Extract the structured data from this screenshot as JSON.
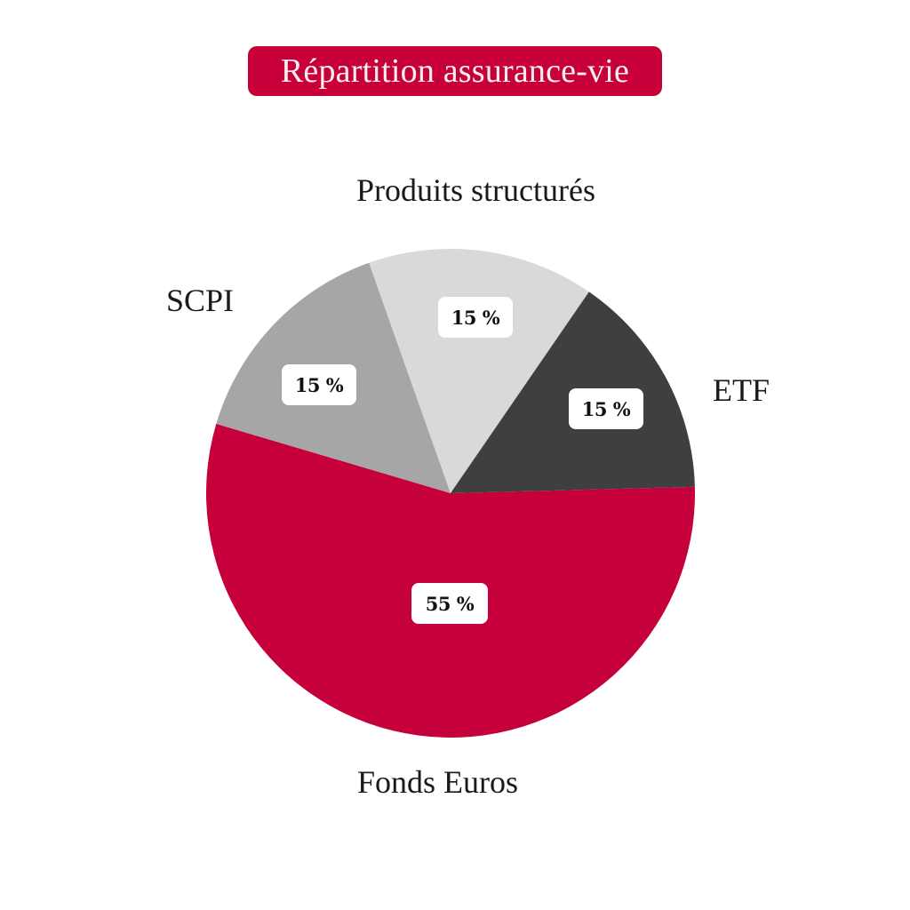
{
  "title": "Répartition assurance-vie",
  "colors": {
    "title_bg": "#c8003a",
    "title_text": "#fbeef1",
    "fonds_euros": "#c5003a",
    "scpi": "#a6a6a6",
    "produits_structures": "#d9d9d9",
    "etf": "#3f3f3f",
    "label_box": "#ffffff"
  },
  "labels": {
    "fonds_euros": "Fonds Euros",
    "scpi": "SCPI",
    "produits_structures": "Produits structurés",
    "etf": "ETF"
  },
  "percent_labels": {
    "fonds_euros": "55 %",
    "scpi": "15 %",
    "produits_structures": "15 %",
    "etf": "15 %"
  },
  "chart_data": {
    "type": "pie",
    "title": "Répartition assurance-vie",
    "categories": [
      "Fonds Euros",
      "SCPI",
      "Produits structurés",
      "ETF"
    ],
    "values": [
      55,
      15,
      15,
      15
    ],
    "unit": "%",
    "colors": [
      "#c5003a",
      "#a6a6a6",
      "#d9d9d9",
      "#3f3f3f"
    ],
    "start_angle_deg": 88.5,
    "direction": "clockwise",
    "legend": "none (labels placed outside slices)",
    "data_labels": [
      "55 %",
      "15 %",
      "15 %",
      "15 %"
    ]
  }
}
